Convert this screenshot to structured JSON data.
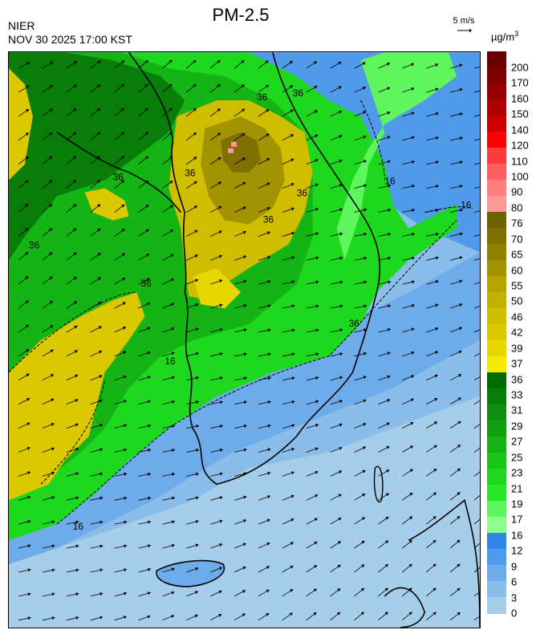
{
  "header": {
    "title": "PM-2.5",
    "agency": "NIER",
    "datetime": "NOV 30 2025 17:00 KST",
    "wind_reference": "5 m/s",
    "unit_base": "µg/m",
    "unit_exp": "3"
  },
  "legend": {
    "labels": [
      "200",
      "170",
      "160",
      "150",
      "140",
      "120",
      "110",
      "100",
      "90",
      "80",
      "76",
      "70",
      "65",
      "60",
      "55",
      "50",
      "46",
      "42",
      "39",
      "37",
      "36",
      "33",
      "31",
      "29",
      "27",
      "25",
      "23",
      "21",
      "19",
      "17",
      "16",
      "12",
      "9",
      "6",
      "3",
      "0"
    ],
    "colors": [
      "#6b0000",
      "#7f0000",
      "#960000",
      "#b00000",
      "#cc0000",
      "#ff0000",
      "#ff3a3a",
      "#ff5e5e",
      "#ff7f7f",
      "#ff9999",
      "#6b6100",
      "#7d7000",
      "#8f8000",
      "#a39300",
      "#b5a300",
      "#c3b100",
      "#cfbd00",
      "#dcc800",
      "#e8d600",
      "#f6ea00",
      "#006b00",
      "#087d08",
      "#0e900e",
      "#10a010",
      "#14b414",
      "#18c818",
      "#1ed81e",
      "#26e826",
      "#5ff55f",
      "#8cff8c",
      "#2f86e8",
      "#4f9ae9",
      "#6eabea",
      "#8bbdea",
      "#a6cdea"
    ]
  },
  "map": {
    "contour_labels": [
      "36",
      "36",
      "36",
      "36",
      "36",
      "36",
      "36",
      "36",
      "16",
      "16",
      "16",
      "16",
      "36"
    ]
  }
}
